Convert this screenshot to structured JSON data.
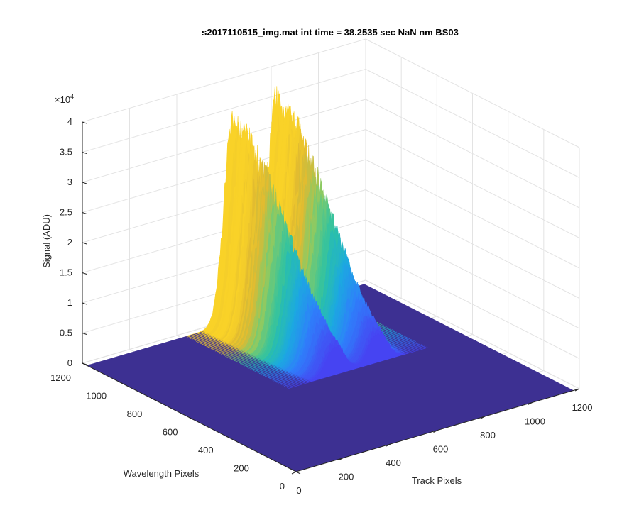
{
  "chart_data": {
    "type": "surface",
    "title": "s2017110515_img.mat int time = 38.2535 sec  NaN nm BS03",
    "xlabel": "Track Pixels",
    "ylabel": "Wavelength Pixels",
    "zlabel": "Signal (ADU)",
    "xlim": [
      0,
      1200
    ],
    "ylim": [
      0,
      1200
    ],
    "zlim": [
      0,
      40000
    ],
    "x_ticks": [
      "0",
      "200",
      "400",
      "600",
      "800",
      "1000",
      "1200"
    ],
    "y_ticks": [
      "0",
      "200",
      "400",
      "600",
      "800",
      "1000",
      "1200"
    ],
    "z_ticks": [
      "0",
      "0.5",
      "1",
      "1.5",
      "2",
      "2.5",
      "3",
      "3.5",
      "4"
    ],
    "z_exponent_label": "×10",
    "z_exponent": "4",
    "grid": true,
    "colormap": [
      "#3e26a8",
      "#4743f2",
      "#2f7ffa",
      "#1ca9e0",
      "#2dc2a4",
      "#84cb68",
      "#e0ba31",
      "#f9d228"
    ],
    "surface_color": "#3d3092",
    "peaks": [
      {
        "track_pixel": 620,
        "wavelength_center": 1180,
        "peak_signal": 32000
      },
      {
        "track_pixel": 800,
        "wavelength_center": 1180,
        "peak_signal": 33500
      }
    ]
  }
}
